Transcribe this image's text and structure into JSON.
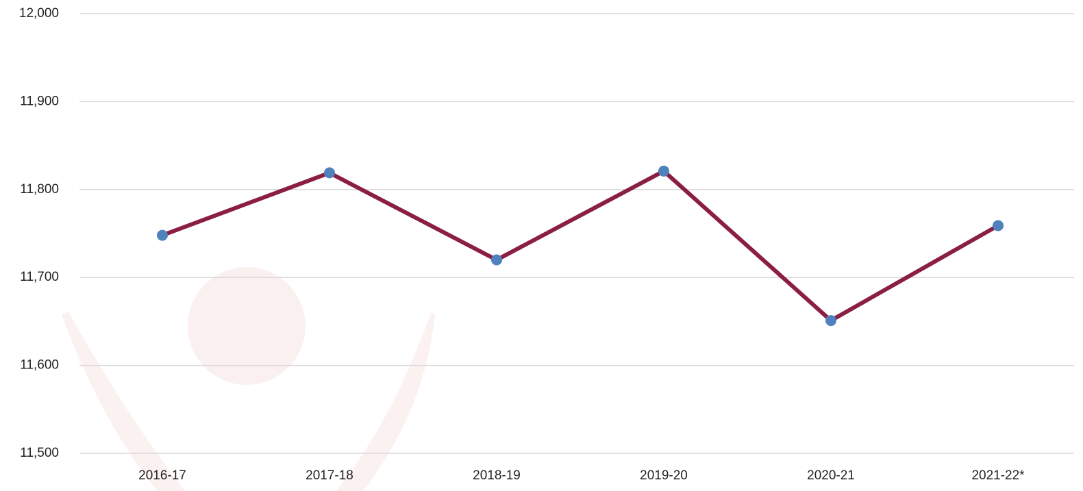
{
  "chart_data": {
    "type": "line",
    "categories": [
      "2016-17",
      "2017-18",
      "2018-19",
      "2019-20",
      "2020-21",
      "2021-22*"
    ],
    "series": [
      {
        "color": "#8b1e43",
        "marker_color": "#4f81bd",
        "values": [
          11748,
          11819,
          11720,
          11821,
          11651,
          11759
        ]
      }
    ],
    "ylim": [
      11500,
      12000
    ],
    "yticks": [
      {
        "value": 11500,
        "label": "11,500"
      },
      {
        "value": 11600,
        "label": "11,600"
      },
      {
        "value": 11700,
        "label": "11,700"
      },
      {
        "value": 11800,
        "label": "11,800"
      },
      {
        "value": 11900,
        "label": "11,900"
      },
      {
        "value": 12000,
        "label": "12,000"
      }
    ],
    "grid": true
  }
}
